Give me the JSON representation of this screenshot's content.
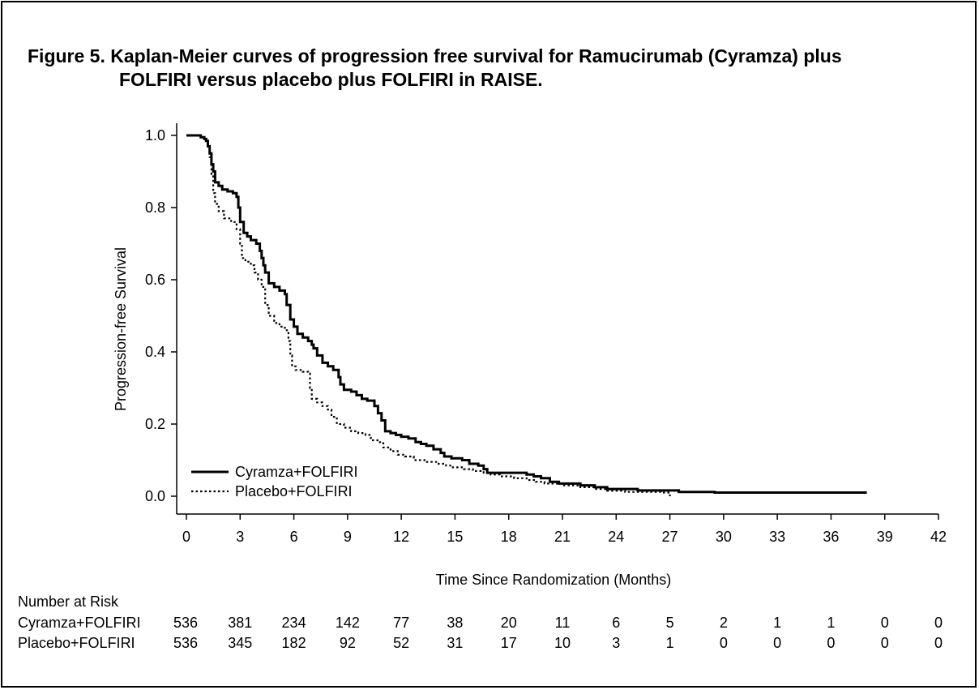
{
  "figure": {
    "title_line1": "Figure 5. Kaplan-Meier curves of progression free survival for Ramucirumab (Cyramza) plus",
    "title_line2": "FOLFIRI versus placebo plus FOLFIRI in RAISE."
  },
  "chart_data": {
    "type": "line",
    "subtype": "kaplan-meier step",
    "xlabel": "Time Since Randomization (Months)",
    "ylabel": "Progression-free Survival",
    "xlim": [
      0,
      42
    ],
    "ylim": [
      0,
      1.0
    ],
    "xticks": [
      0,
      3,
      6,
      9,
      12,
      15,
      18,
      21,
      24,
      27,
      30,
      33,
      36,
      39,
      42
    ],
    "yticks": [
      0.0,
      0.2,
      0.4,
      0.6,
      0.8,
      1.0
    ],
    "ytick_labels": [
      "0.0",
      "0.2",
      "0.4",
      "0.6",
      "0.8",
      "1.0"
    ],
    "legend_position": "bottom-left",
    "grid": false,
    "series": [
      {
        "name": "Cyramza+FOLFIRI",
        "style": "solid",
        "color": "#000000",
        "points": [
          [
            0,
            1.0
          ],
          [
            0.5,
            1.0
          ],
          [
            0.8,
            0.995
          ],
          [
            1.0,
            0.99
          ],
          [
            1.1,
            0.985
          ],
          [
            1.2,
            0.97
          ],
          [
            1.3,
            0.95
          ],
          [
            1.4,
            0.92
          ],
          [
            1.5,
            0.9
          ],
          [
            1.6,
            0.87
          ],
          [
            1.8,
            0.86
          ],
          [
            2.0,
            0.85
          ],
          [
            2.3,
            0.845
          ],
          [
            2.6,
            0.84
          ],
          [
            2.8,
            0.83
          ],
          [
            2.9,
            0.8
          ],
          [
            3.0,
            0.76
          ],
          [
            3.2,
            0.73
          ],
          [
            3.4,
            0.72
          ],
          [
            3.6,
            0.71
          ],
          [
            3.9,
            0.7
          ],
          [
            4.1,
            0.68
          ],
          [
            4.2,
            0.66
          ],
          [
            4.3,
            0.64
          ],
          [
            4.4,
            0.62
          ],
          [
            4.6,
            0.59
          ],
          [
            4.9,
            0.58
          ],
          [
            5.2,
            0.57
          ],
          [
            5.5,
            0.56
          ],
          [
            5.6,
            0.53
          ],
          [
            5.8,
            0.49
          ],
          [
            6.0,
            0.47
          ],
          [
            6.2,
            0.45
          ],
          [
            6.5,
            0.44
          ],
          [
            6.8,
            0.43
          ],
          [
            7.0,
            0.42
          ],
          [
            7.1,
            0.41
          ],
          [
            7.3,
            0.39
          ],
          [
            7.6,
            0.37
          ],
          [
            7.9,
            0.36
          ],
          [
            8.2,
            0.35
          ],
          [
            8.5,
            0.33
          ],
          [
            8.6,
            0.31
          ],
          [
            8.8,
            0.295
          ],
          [
            9.2,
            0.29
          ],
          [
            9.5,
            0.28
          ],
          [
            9.8,
            0.27
          ],
          [
            10.1,
            0.265
          ],
          [
            10.5,
            0.25
          ],
          [
            10.7,
            0.23
          ],
          [
            10.9,
            0.21
          ],
          [
            11.1,
            0.18
          ],
          [
            11.4,
            0.175
          ],
          [
            11.7,
            0.17
          ],
          [
            12.0,
            0.165
          ],
          [
            12.4,
            0.16
          ],
          [
            12.8,
            0.15
          ],
          [
            13.1,
            0.145
          ],
          [
            13.4,
            0.14
          ],
          [
            13.8,
            0.13
          ],
          [
            14.2,
            0.12
          ],
          [
            14.4,
            0.11
          ],
          [
            14.8,
            0.105
          ],
          [
            15.4,
            0.1
          ],
          [
            15.8,
            0.09
          ],
          [
            16.3,
            0.085
          ],
          [
            16.6,
            0.075
          ],
          [
            16.8,
            0.065
          ],
          [
            17.5,
            0.065
          ],
          [
            18.5,
            0.065
          ],
          [
            19.0,
            0.06
          ],
          [
            19.4,
            0.055
          ],
          [
            19.8,
            0.05
          ],
          [
            20.3,
            0.04
          ],
          [
            20.8,
            0.035
          ],
          [
            21.4,
            0.035
          ],
          [
            22.0,
            0.03
          ],
          [
            22.8,
            0.025
          ],
          [
            23.5,
            0.02
          ],
          [
            24.5,
            0.02
          ],
          [
            25.2,
            0.016
          ],
          [
            27.0,
            0.016
          ],
          [
            27.5,
            0.012
          ],
          [
            29.5,
            0.01
          ],
          [
            38.0,
            0.01
          ]
        ]
      },
      {
        "name": "Placebo+FOLFIRI",
        "style": "dotted",
        "color": "#000000",
        "points": [
          [
            0,
            1.0
          ],
          [
            0.5,
            1.0
          ],
          [
            0.8,
            0.995
          ],
          [
            1.0,
            0.99
          ],
          [
            1.2,
            0.97
          ],
          [
            1.3,
            0.94
          ],
          [
            1.4,
            0.89
          ],
          [
            1.5,
            0.84
          ],
          [
            1.6,
            0.81
          ],
          [
            1.8,
            0.79
          ],
          [
            2.1,
            0.77
          ],
          [
            2.5,
            0.76
          ],
          [
            2.8,
            0.74
          ],
          [
            3.0,
            0.7
          ],
          [
            3.1,
            0.66
          ],
          [
            3.3,
            0.65
          ],
          [
            3.6,
            0.64
          ],
          [
            3.8,
            0.62
          ],
          [
            4.0,
            0.6
          ],
          [
            4.2,
            0.58
          ],
          [
            4.4,
            0.53
          ],
          [
            4.6,
            0.5
          ],
          [
            4.9,
            0.48
          ],
          [
            5.2,
            0.47
          ],
          [
            5.5,
            0.46
          ],
          [
            5.7,
            0.43
          ],
          [
            5.8,
            0.39
          ],
          [
            5.9,
            0.36
          ],
          [
            6.1,
            0.35
          ],
          [
            6.5,
            0.345
          ],
          [
            6.8,
            0.34
          ],
          [
            6.9,
            0.3
          ],
          [
            7.0,
            0.27
          ],
          [
            7.3,
            0.26
          ],
          [
            7.6,
            0.25
          ],
          [
            7.9,
            0.24
          ],
          [
            8.1,
            0.22
          ],
          [
            8.4,
            0.2
          ],
          [
            8.8,
            0.19
          ],
          [
            9.2,
            0.18
          ],
          [
            9.6,
            0.175
          ],
          [
            10.0,
            0.17
          ],
          [
            10.3,
            0.155
          ],
          [
            10.8,
            0.15
          ],
          [
            11.0,
            0.135
          ],
          [
            11.4,
            0.125
          ],
          [
            11.8,
            0.115
          ],
          [
            12.2,
            0.11
          ],
          [
            12.7,
            0.1
          ],
          [
            13.3,
            0.095
          ],
          [
            14.0,
            0.09
          ],
          [
            14.5,
            0.085
          ],
          [
            14.8,
            0.08
          ],
          [
            15.5,
            0.075
          ],
          [
            16.0,
            0.07
          ],
          [
            16.6,
            0.065
          ],
          [
            17.0,
            0.06
          ],
          [
            17.5,
            0.055
          ],
          [
            18.3,
            0.05
          ],
          [
            19.0,
            0.045
          ],
          [
            19.5,
            0.04
          ],
          [
            20.0,
            0.035
          ],
          [
            21.0,
            0.03
          ],
          [
            22.0,
            0.025
          ],
          [
            22.8,
            0.02
          ],
          [
            23.5,
            0.015
          ],
          [
            24.5,
            0.012
          ],
          [
            25.5,
            0.012
          ],
          [
            26.5,
            0.01
          ],
          [
            27.0,
            0.0
          ]
        ]
      }
    ],
    "risk_table": {
      "heading": "Number at Risk",
      "rows": [
        {
          "label": "Cyramza+FOLFIRI",
          "values": [
            536,
            381,
            234,
            142,
            77,
            38,
            20,
            11,
            6,
            5,
            2,
            1,
            1,
            0,
            0
          ]
        },
        {
          "label": "Placebo+FOLFIRI",
          "values": [
            536,
            345,
            182,
            92,
            52,
            31,
            17,
            10,
            3,
            1,
            0,
            0,
            0,
            0,
            0
          ]
        }
      ]
    }
  }
}
